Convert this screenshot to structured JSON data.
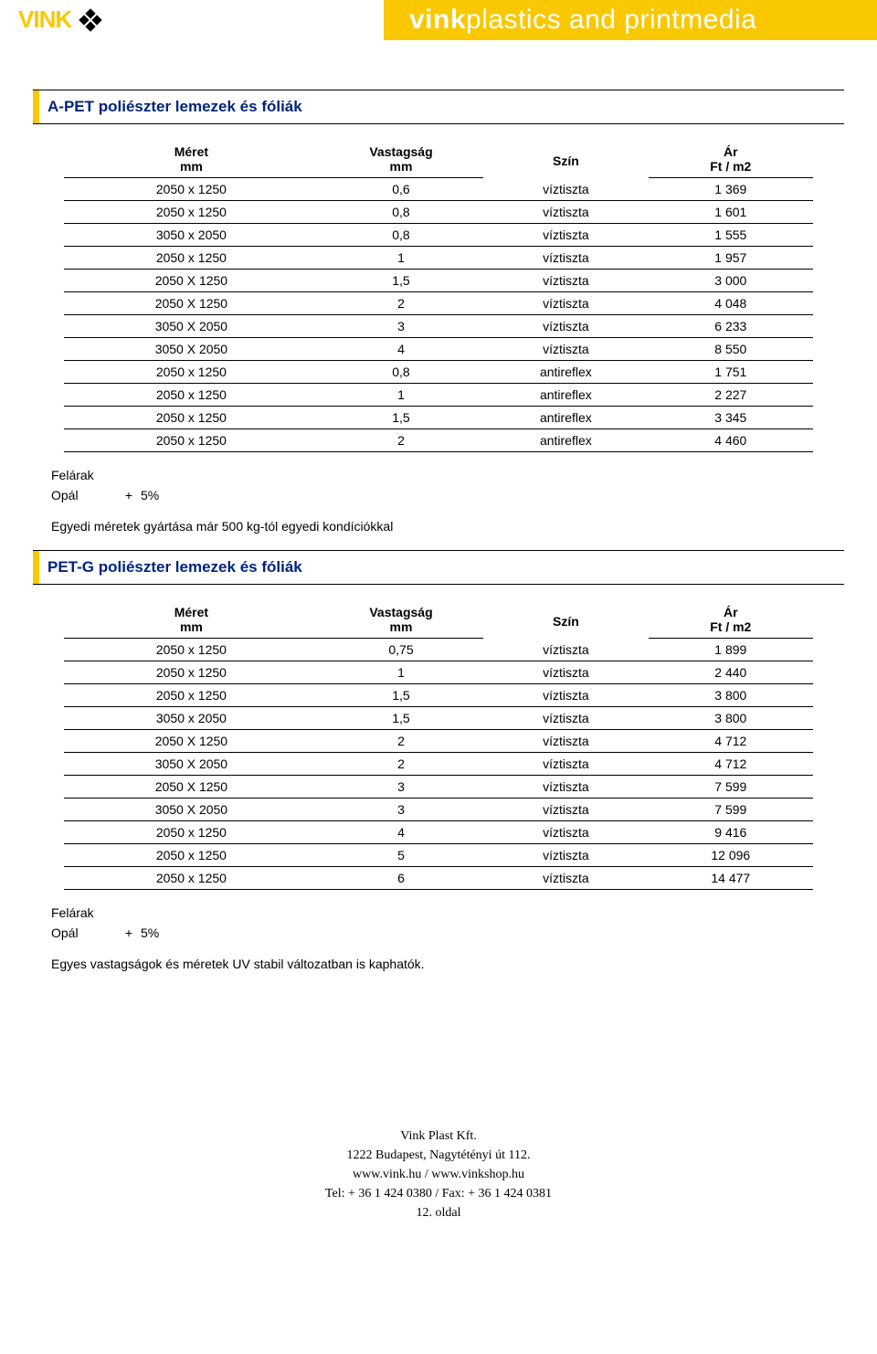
{
  "colors": {
    "brand": "#f9c800",
    "title": "#00247d",
    "text": "#000",
    "bg": "#fff"
  },
  "header": {
    "brand_text": "VINK",
    "banner_bold": "vink",
    "banner_light": "plastics and printmedia"
  },
  "section1": {
    "title": "A-PET poliészter lemezek és fóliák",
    "head": {
      "c1a": "Méret",
      "c1b": "mm",
      "c2a": "Vastagság",
      "c2b": "mm",
      "c3": "Szín",
      "c4a": "Ár",
      "c4b": "Ft / m2"
    },
    "rows": [
      {
        "size": "2050 x 1250",
        "thick": "0,6",
        "color": "víztiszta",
        "price": "1 369"
      },
      {
        "size": "2050 x 1250",
        "thick": "0,8",
        "color": "víztiszta",
        "price": "1 601"
      },
      {
        "size": "3050 x 2050",
        "thick": "0,8",
        "color": "víztiszta",
        "price": "1 555"
      },
      {
        "size": "2050 x 1250",
        "thick": "1",
        "color": "víztiszta",
        "price": "1 957"
      },
      {
        "size": "2050 X 1250",
        "thick": "1,5",
        "color": "víztiszta",
        "price": "3 000"
      },
      {
        "size": "2050 X 1250",
        "thick": "2",
        "color": "víztiszta",
        "price": "4 048"
      },
      {
        "size": "3050 X 2050",
        "thick": "3",
        "color": "víztiszta",
        "price": "6 233"
      },
      {
        "size": "3050 X 2050",
        "thick": "4",
        "color": "víztiszta",
        "price": "8 550"
      },
      {
        "size": "2050 x 1250",
        "thick": "0,8",
        "color": "antireflex",
        "price": "1 751"
      },
      {
        "size": "2050 x 1250",
        "thick": "1",
        "color": "antireflex",
        "price": "2 227"
      },
      {
        "size": "2050 x 1250",
        "thick": "1,5",
        "color": "antireflex",
        "price": "3 345"
      },
      {
        "size": "2050 x 1250",
        "thick": "2",
        "color": "antireflex",
        "price": "4 460"
      }
    ],
    "surcharge_title": "Felárak",
    "surcharge_label": "Opál",
    "surcharge_op": "+",
    "surcharge_value": "5%",
    "note": "Egyedi méretek gyártása már 500 kg-tól egyedi kondíciókkal"
  },
  "section2": {
    "title": "PET-G poliészter lemezek és fóliák",
    "head": {
      "c1a": "Méret",
      "c1b": "mm",
      "c2a": "Vastagság",
      "c2b": "mm",
      "c3": "Szín",
      "c4a": "Ár",
      "c4b": "Ft / m2"
    },
    "rows": [
      {
        "size": "2050 x 1250",
        "thick": "0,75",
        "color": "víztiszta",
        "price": "1 899"
      },
      {
        "size": "2050 x 1250",
        "thick": "1",
        "color": "víztiszta",
        "price": "2 440"
      },
      {
        "size": "2050 x 1250",
        "thick": "1,5",
        "color": "víztiszta",
        "price": "3 800"
      },
      {
        "size": "3050 x 2050",
        "thick": "1,5",
        "color": "víztiszta",
        "price": "3 800"
      },
      {
        "size": "2050 X 1250",
        "thick": "2",
        "color": "víztiszta",
        "price": "4 712"
      },
      {
        "size": "3050 X 2050",
        "thick": "2",
        "color": "víztiszta",
        "price": "4 712"
      },
      {
        "size": "2050 X 1250",
        "thick": "3",
        "color": "víztiszta",
        "price": "7 599"
      },
      {
        "size": "3050 X 2050",
        "thick": "3",
        "color": "víztiszta",
        "price": "7 599"
      },
      {
        "size": "2050 x 1250",
        "thick": "4",
        "color": "víztiszta",
        "price": "9 416"
      },
      {
        "size": "2050 x 1250",
        "thick": "5",
        "color": "víztiszta",
        "price": "12 096"
      },
      {
        "size": "2050 x 1250",
        "thick": "6",
        "color": "víztiszta",
        "price": "14 477"
      }
    ],
    "surcharge_title": "Felárak",
    "surcharge_label": "Opál",
    "surcharge_op": "+",
    "surcharge_value": "5%",
    "note": "Egyes vastagságok és méretek UV stabil változatban is kaphatók."
  },
  "footer": {
    "l1": "Vink Plast Kft.",
    "l2": "1222 Budapest, Nagytétényi út 112.",
    "l3": "www.vink.hu / www.vinkshop.hu",
    "l4": "Tel: + 36 1 424 0380 / Fax: + 36 1 424 0381",
    "l5": "12. oldal"
  }
}
